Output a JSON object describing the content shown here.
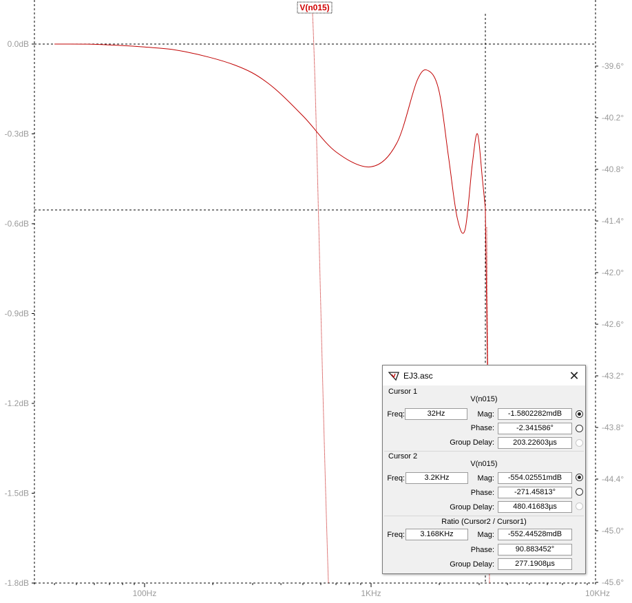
{
  "trace_name": "V(n015)",
  "axes": {
    "left_ticks": [
      "0.0dB",
      "-0.3dB",
      "-0.6dB",
      "-0.9dB",
      "-1.2dB",
      "-1.5dB",
      "-1.8dB"
    ],
    "right_ticks": [
      "-39.6°",
      "-40.2°",
      "-40.8°",
      "-41.4°",
      "-42.0°",
      "-42.6°",
      "-43.2°",
      "-43.8°",
      "-44.4°",
      "-45.0°",
      "-45.6°"
    ],
    "x_ticks": [
      "100Hz",
      "1KHz",
      "10KHz"
    ]
  },
  "colors": {
    "trace": "#c00000",
    "axis_text": "#9a9a9a",
    "grid": "#000000"
  },
  "chart_data": {
    "type": "line",
    "x_scale": "log",
    "xlim": [
      40,
      10000
    ],
    "ylim": [
      -1.8,
      0.1
    ],
    "series": [
      {
        "name": "V(n015)",
        "x": [
          40,
          60,
          100,
          150,
          250,
          350,
          500,
          700,
          1000,
          1300,
          1600,
          1800,
          2000,
          2200,
          2400,
          2600,
          2800,
          2950,
          3100,
          3200
        ],
        "y": [
          0.0,
          -0.001,
          -0.01,
          -0.025,
          -0.07,
          -0.13,
          -0.24,
          -0.36,
          -0.41,
          -0.33,
          -0.12,
          -0.09,
          -0.16,
          -0.38,
          -0.58,
          -0.62,
          -0.4,
          -0.3,
          -0.45,
          -0.554
        ]
      }
    ],
    "phase_ylim": [
      -45.6,
      -39.0
    ]
  },
  "dialog": {
    "title": "EJ3.asc",
    "close_glyph": "✕",
    "cursor1": {
      "label": "Cursor 1",
      "trace": "V(n015)",
      "freq_label": "Freq:",
      "freq": "32Hz",
      "mag_label": "Mag:",
      "mag": "-1.5802282mdB",
      "phase_label": "Phase:",
      "phase": "-2.341586°",
      "gd_label": "Group Delay:",
      "gd": "203.22603µs"
    },
    "cursor2": {
      "label": "Cursor 2",
      "trace": "V(n015)",
      "freq_label": "Freq:",
      "freq": "3.2KHz",
      "mag_label": "Mag:",
      "mag": "-554.02551mdB",
      "phase_label": "Phase:",
      "phase": "-271.45813°",
      "gd_label": "Group Delay:",
      "gd": "480.41683µs"
    },
    "ratio": {
      "label": "Ratio (Cursor2 / Cursor1)",
      "freq_label": "Freq:",
      "freq": "3.168KHz",
      "mag_label": "Mag:",
      "mag": "-552.44528mdB",
      "phase_label": "Phase:",
      "phase": "90.883452°",
      "gd_label": "Group Delay:",
      "gd": "277.1908µs"
    }
  }
}
